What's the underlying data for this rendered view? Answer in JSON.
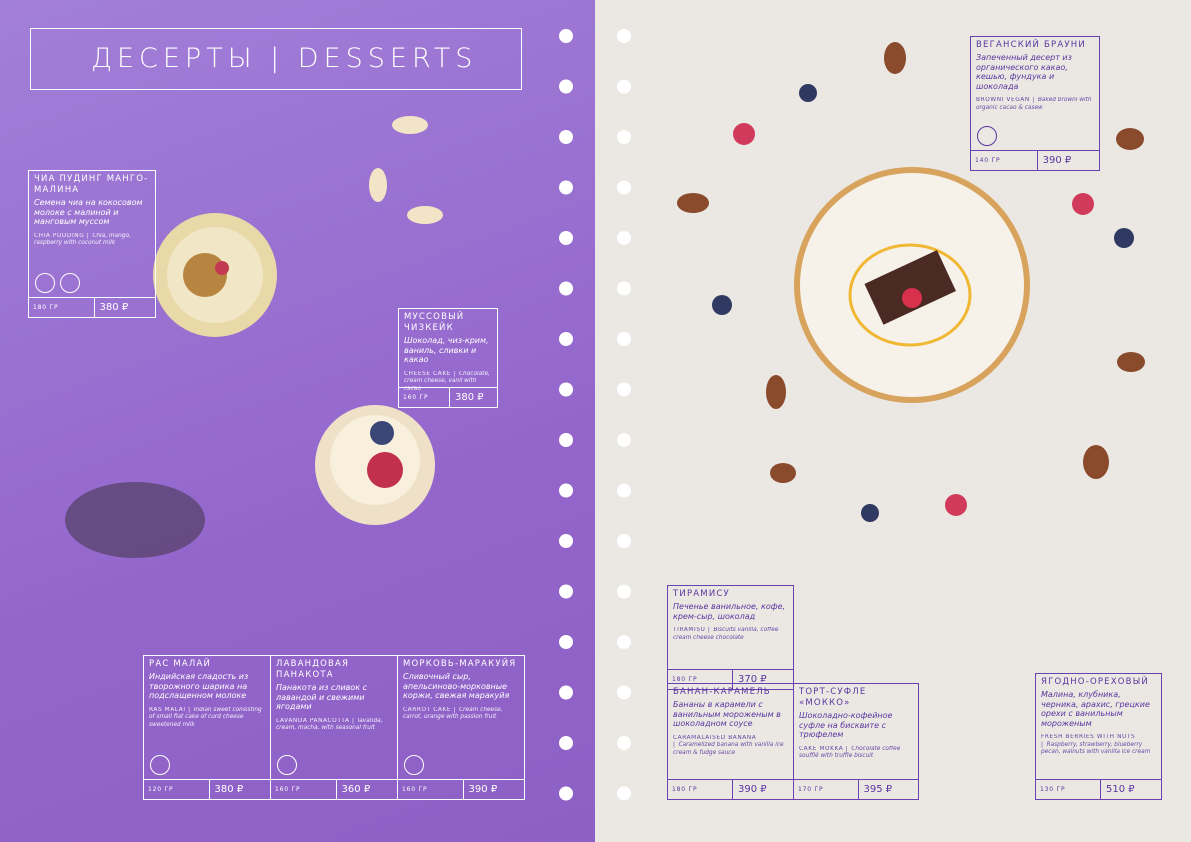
{
  "header": {
    "title": "ДЕСЕРТЫ | DESSERTS"
  },
  "items": [
    {
      "name": "ЧИА ПУДИНГ МАНГО-МАЛИНА",
      "description": "Семена чиа на кокосовом молоке с малиной и манговым муссом",
      "name_en": "CHIA PUDDING |",
      "description_en": "Chia, mango, raspberry with coconut milk",
      "weight": "180 ГР",
      "price": "380 ₽"
    },
    {
      "name": "МУССОВЫЙ ЧИЗКЕЙК",
      "description": "Шоколад, чиз-крим, ваниль, сливки и какао",
      "name_en": "CHEESE CAKE |",
      "description_en": "Chocolate, cream cheese, vanil with cacao",
      "weight": "160 ГР",
      "price": "380 ₽"
    },
    {
      "name": "РАС МАЛАЙ",
      "description": "Индийская сладость из творожного шарика на подслащенном молоке",
      "name_en": "RAS MALAI |",
      "description_en": "Indian sweet consisting of small flat cake of curd cheese sweetened milk",
      "weight": "120 ГР",
      "price": "380 ₽"
    },
    {
      "name": "ЛАВАНДОВАЯ ПАНАКОТА",
      "description": "Панакота из сливок с лавандой и свежими ягодами",
      "name_en": "LAVANDA PANACOTTA |",
      "description_en": "lavanda, cream, macha, with seasonal fruit",
      "weight": "160 ГР",
      "price": "360 ₽"
    },
    {
      "name": "МОРКОВЬ-МАРАКУЙЯ",
      "description": "Сливочный сыр, апельсиново-морковные коржи, свежая маракуйя",
      "name_en": "CARROT CAKE |",
      "description_en": "Cream cheese, carrot, orange with passion fruit",
      "weight": "160 ГР",
      "price": "390 ₽"
    },
    {
      "name": "ВЕГАНСКИЙ БРАУНИ",
      "description": "Запеченный десерт из органического какао, кешью, фундука и шоколада",
      "name_en": "BROWNI VEGAN |",
      "description_en": "Baked browni with organic cacao & casew",
      "weight": "140 ГР",
      "price": "390 ₽"
    },
    {
      "name": "ТИРАМИСУ",
      "description": "Печенье ванильное, кофе, крем-сыр, шоколад",
      "name_en": "TIRAMISU |",
      "description_en": "Biscuits vanilla, coffee cream cheese chocolate",
      "weight": "180 ГР",
      "price": "370 ₽"
    },
    {
      "name": "БАНАН-КАРАМЕЛЬ",
      "description": "Бананы в карамели с ванильным мороженым в шоколадном соусе",
      "name_en": "CARAMALAISED BANANA |",
      "description_en": "Caramelized banana with vanilla ice cream & fudge sauce",
      "weight": "180 ГР",
      "price": "390 ₽"
    },
    {
      "name": "ТОРТ-СУФЛЕ «МОККО»",
      "description": "Шоколадно-кофейное суфле на бисквите с трюфелем",
      "name_en": "CAKE MOKKA |",
      "description_en": "Chocolate coffee soufflé with truffle biscuit",
      "weight": "170 ГР",
      "price": "395 ₽"
    },
    {
      "name": "ЯГОДНО-ОРЕХОВЫЙ",
      "description": "Малина, клубника, черника, арахис, грецкие орехи с ванильным мороженым",
      "name_en": "FRESH BERRIES WITH NUTS |",
      "description_en": "Raspberry, strawberry, blueberry pecan, walnuts with vanilla ice cream",
      "weight": "130 ГР",
      "price": "510 ₽"
    }
  ]
}
